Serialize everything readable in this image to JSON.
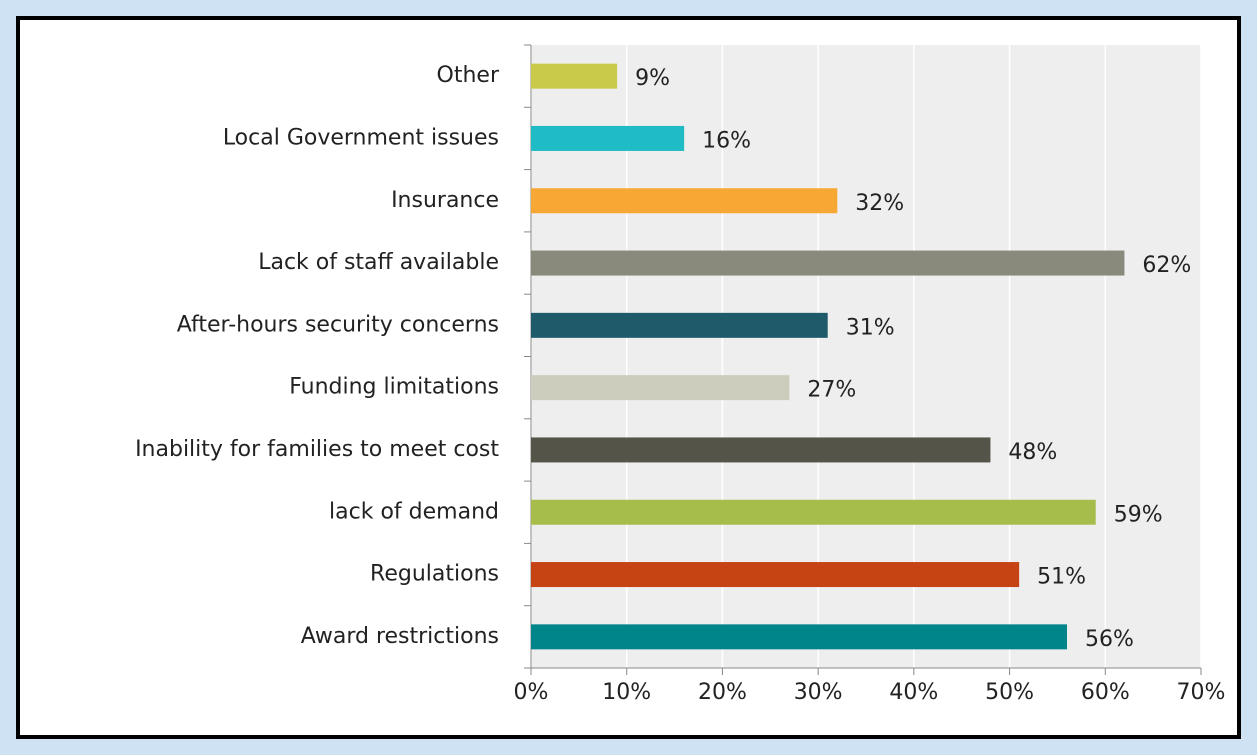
{
  "chart_data": {
    "type": "hbar",
    "categories": [
      "Other",
      "Local Government issues",
      "Insurance",
      "Lack of staff available",
      "After-hours security concerns",
      "Funding limitations",
      "Inability for families to meet cost",
      "lack of demand",
      "Regulations",
      "Award restrictions"
    ],
    "values": [
      9,
      16,
      32,
      62,
      31,
      27,
      48,
      59,
      51,
      56
    ],
    "value_labels": [
      "9%",
      "16%",
      "32%",
      "62%",
      "31%",
      "27%",
      "48%",
      "59%",
      "51%",
      "56%"
    ],
    "colors": [
      "#c9c94a",
      "#1fbcc6",
      "#f6a734",
      "#8a8a7c",
      "#1f5a6a",
      "#cccdbd",
      "#545449",
      "#a7bd4b",
      "#c64314",
      "#00868a"
    ],
    "xlim": [
      0,
      70
    ],
    "xticks": [
      {
        "value": 0,
        "label": "0%"
      },
      {
        "value": 10,
        "label": "10%"
      },
      {
        "value": 20,
        "label": "20%"
      },
      {
        "value": 30,
        "label": "30%"
      },
      {
        "value": 40,
        "label": "40%"
      },
      {
        "value": 50,
        "label": "50%"
      },
      {
        "value": 60,
        "label": "60%"
      },
      {
        "value": 70,
        "label": "70%"
      }
    ],
    "grid": true
  }
}
